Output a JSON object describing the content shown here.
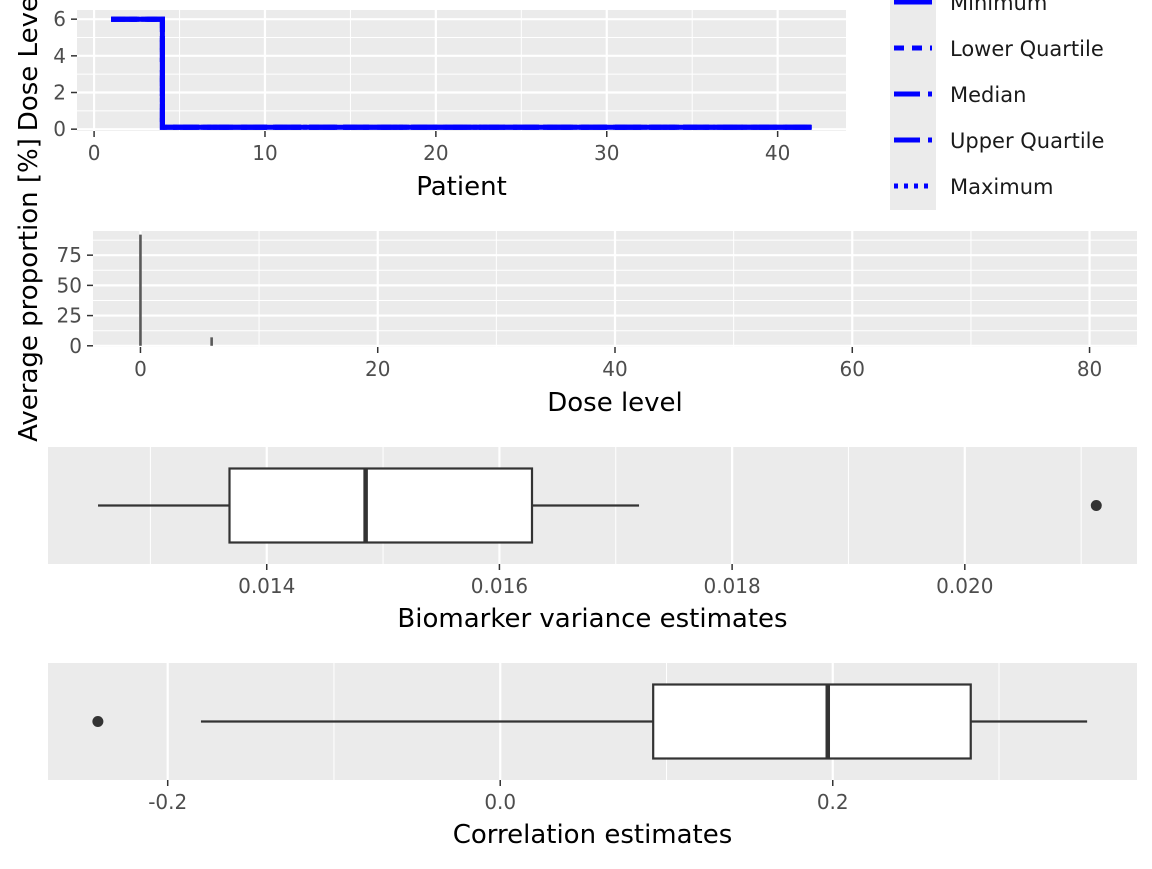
{
  "chart_data": [
    {
      "type": "line",
      "xlabel": "Patient",
      "ylabel": "Dose Level",
      "xlim": [
        -1,
        44
      ],
      "ylim": [
        -0.1,
        6.5
      ],
      "x_ticks": [
        0,
        10,
        20,
        30,
        40
      ],
      "y_ticks": [
        0,
        2,
        4,
        6
      ],
      "grid": true,
      "legend_position": "right",
      "legend": [
        {
          "name": "Minimum",
          "dash": "solid"
        },
        {
          "name": "Lower Quartile",
          "dash": "dashed"
        },
        {
          "name": "Median",
          "dash": "longdash"
        },
        {
          "name": "Upper Quartile",
          "dash": "longdash"
        },
        {
          "name": "Maximum",
          "dash": "dotted"
        }
      ],
      "series_color": "#0000ff",
      "series": [
        {
          "name": "Minimum",
          "x": [
            1,
            4,
            4,
            42
          ],
          "y": [
            6,
            6,
            0.1,
            0.1
          ]
        },
        {
          "name": "Lower Quartile",
          "x": [
            1,
            4,
            4,
            42
          ],
          "y": [
            6,
            6,
            0.1,
            0.1
          ]
        },
        {
          "name": "Median",
          "x": [
            1,
            4,
            4,
            42
          ],
          "y": [
            6,
            6,
            0.1,
            0.1
          ]
        },
        {
          "name": "Upper Quartile",
          "x": [
            1,
            4,
            4,
            42
          ],
          "y": [
            6,
            6,
            0.1,
            0.1
          ]
        },
        {
          "name": "Maximum",
          "x": [
            1,
            4,
            4,
            42
          ],
          "y": [
            6,
            6,
            0.1,
            0.1
          ]
        }
      ]
    },
    {
      "type": "bar",
      "xlabel": "Dose level",
      "ylabel": "Average proportion [%]",
      "xlim": [
        -4,
        84
      ],
      "ylim": [
        -1,
        95
      ],
      "x_ticks": [
        0,
        20,
        40,
        60,
        80
      ],
      "y_ticks": [
        0,
        25,
        50,
        75
      ],
      "grid": true,
      "x": [
        0,
        6
      ],
      "values": [
        92,
        7
      ]
    },
    {
      "type": "boxplot",
      "xlabel": "Biomarker variance estimates",
      "xlim": [
        0.01212,
        0.02148
      ],
      "x_ticks": [
        0.014,
        0.016,
        0.018,
        0.02
      ],
      "x_tick_labels": [
        "0.014",
        "0.016",
        "0.018",
        "0.020"
      ],
      "grid": true,
      "whisker_low": 0.01255,
      "q1": 0.01368,
      "median": 0.01485,
      "q3": 0.01628,
      "whisker_high": 0.0172,
      "outliers": [
        0.02113
      ]
    },
    {
      "type": "boxplot",
      "xlabel": "Correlation estimates",
      "xlim": [
        -0.272,
        0.383
      ],
      "x_ticks": [
        -0.2,
        0,
        0.2
      ],
      "x_tick_labels": [
        "-0.2",
        "0.0",
        "0.2"
      ],
      "grid": true,
      "whisker_low": -0.18,
      "q1": 0.092,
      "median": 0.197,
      "q3": 0.283,
      "whisker_high": 0.353,
      "outliers": [
        -0.242
      ]
    }
  ]
}
